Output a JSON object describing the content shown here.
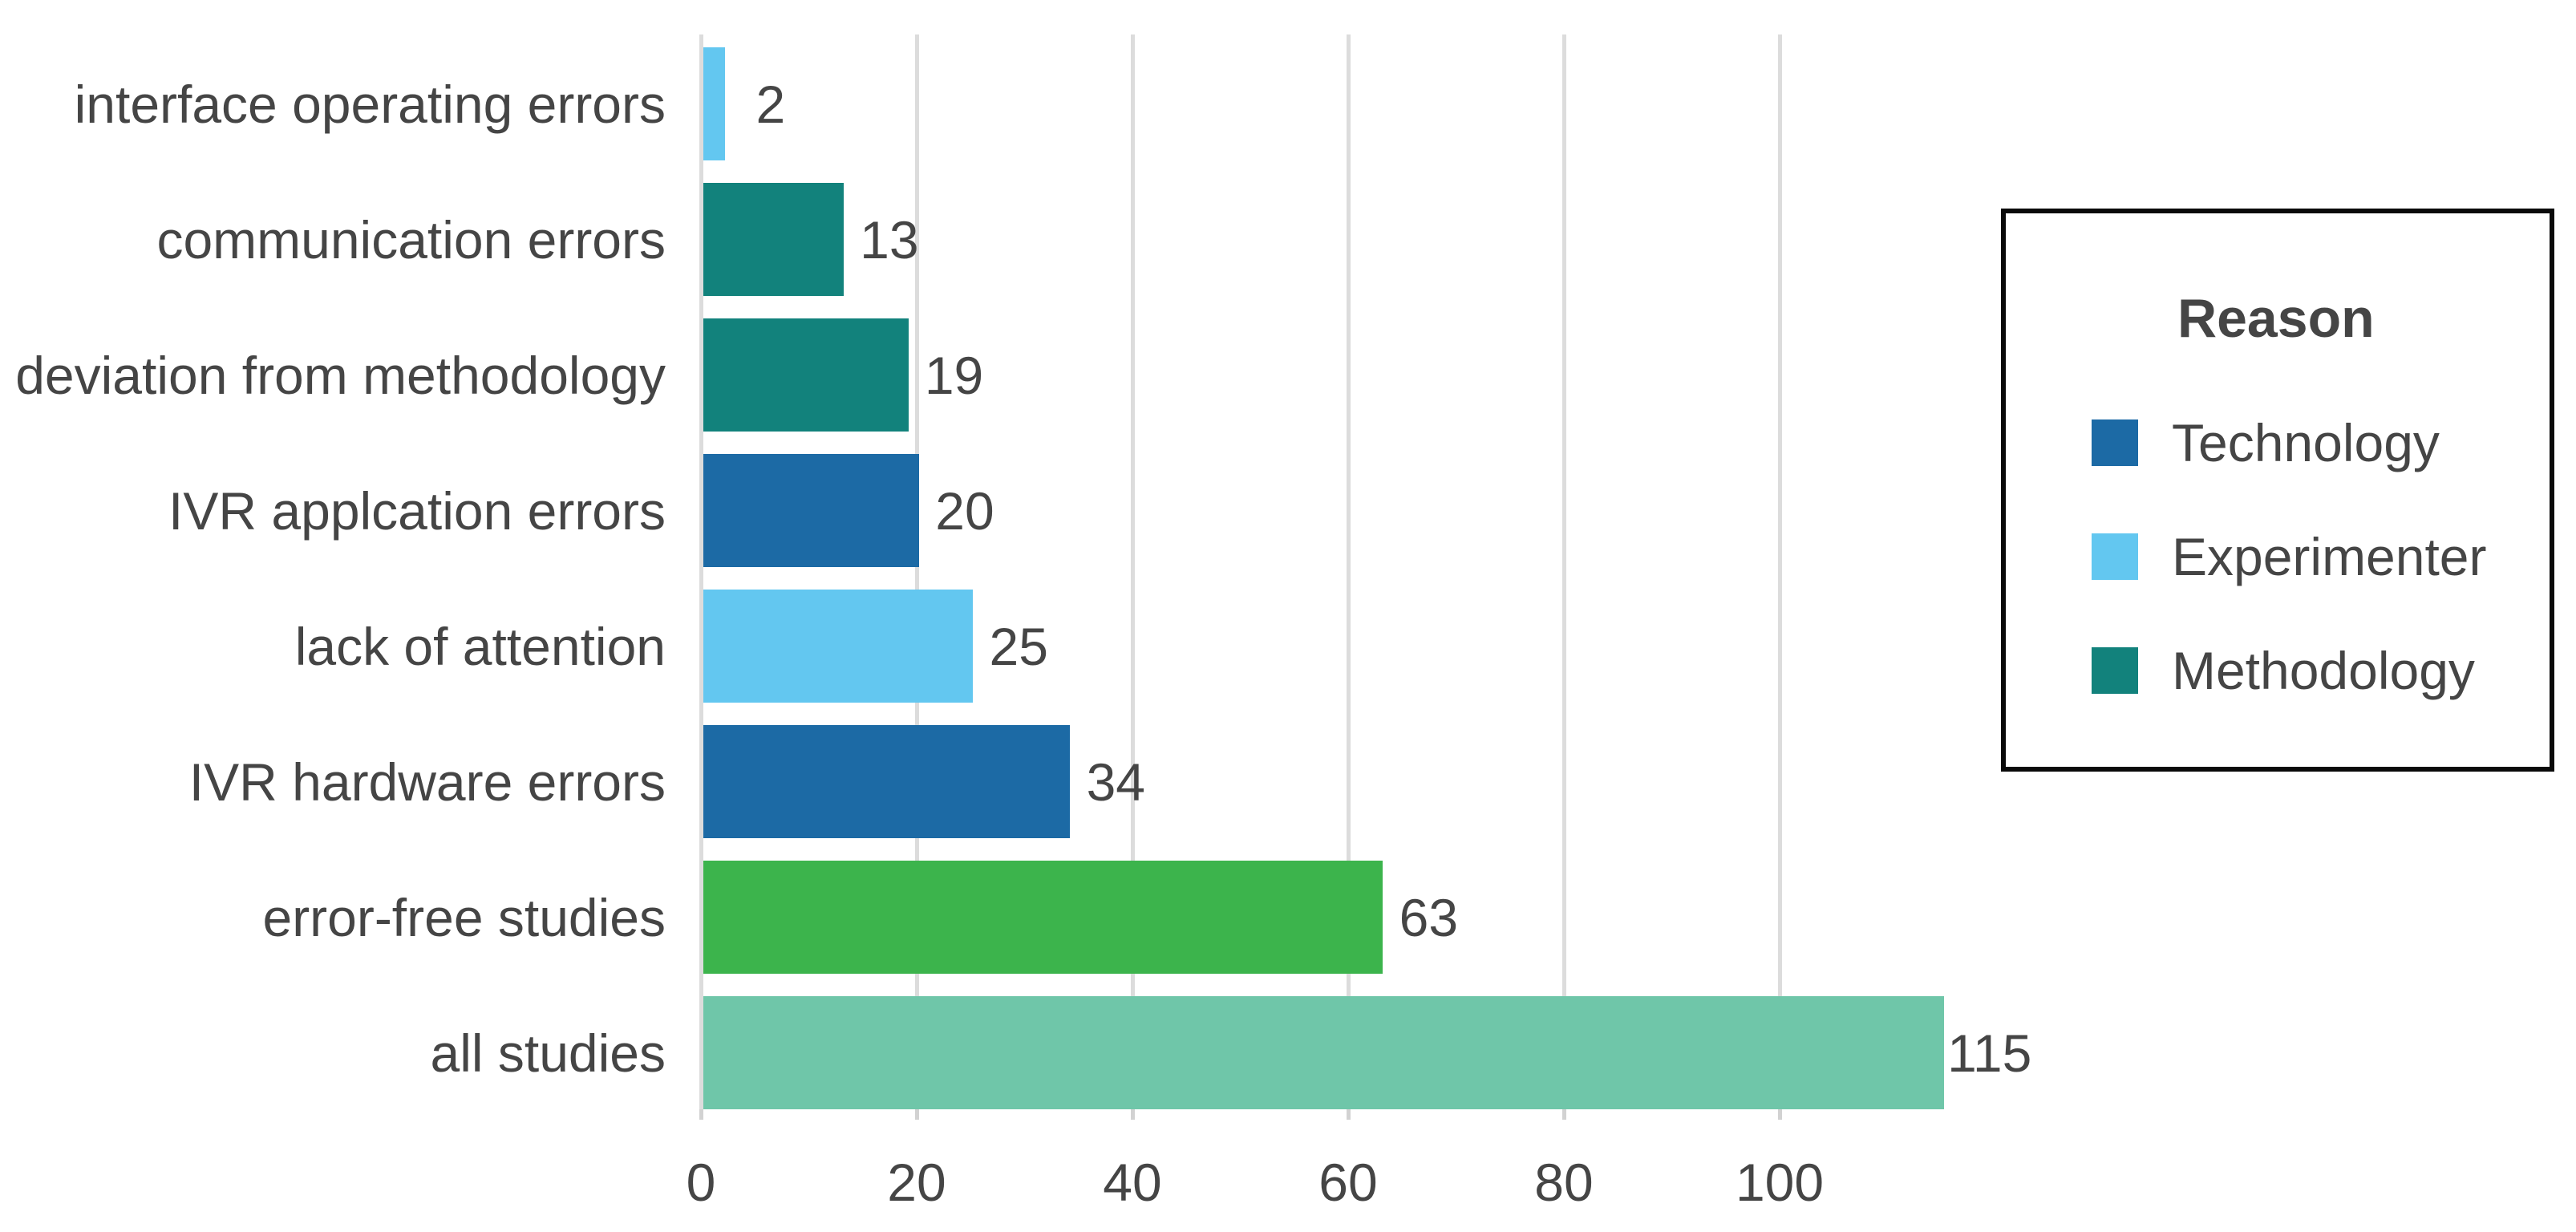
{
  "chart_data": {
    "type": "bar",
    "orientation": "horizontal",
    "title": "",
    "xlabel": "",
    "ylabel": "",
    "categories": [
      "interface operating errors",
      "communication errors",
      "deviation from methodology",
      "IVR applcation errors",
      "lack of attention",
      "IVR hardware errors",
      "error-free studies",
      "all studies"
    ],
    "values": [
      2,
      13,
      19,
      20,
      25,
      34,
      63,
      115
    ],
    "bar_colors": [
      "#63c7f0",
      "#12827c",
      "#12827c",
      "#1c6aa5",
      "#63c7f0",
      "#1c6aa5",
      "#3cb44c",
      "#6fc6a9"
    ],
    "bar_reasons": [
      "Experimenter",
      "Methodology",
      "Methodology",
      "Technology",
      "Experimenter",
      "Technology",
      "",
      ""
    ],
    "value_labels": [
      "2",
      "13",
      "19",
      "20",
      "25",
      "34",
      "63",
      "115"
    ],
    "x_ticks": [
      "0",
      "20",
      "40",
      "60",
      "80",
      "100"
    ],
    "x_tick_values": [
      0,
      20,
      40,
      60,
      80,
      100
    ],
    "xlim": [
      0,
      118
    ],
    "grid": true,
    "legend_position": "right"
  },
  "legend": {
    "title": "Reason",
    "entries": [
      {
        "label": "Technology",
        "color": "#1c6aa5"
      },
      {
        "label": "Experimenter",
        "color": "#63c7f0"
      },
      {
        "label": "Methodology",
        "color": "#12827c"
      }
    ]
  },
  "colors": {
    "background": "#ffffff",
    "gridline": "#dcdcdc",
    "tick": "#d2d2d2",
    "text": "#454545",
    "legend_border": "#0a0a0a"
  }
}
